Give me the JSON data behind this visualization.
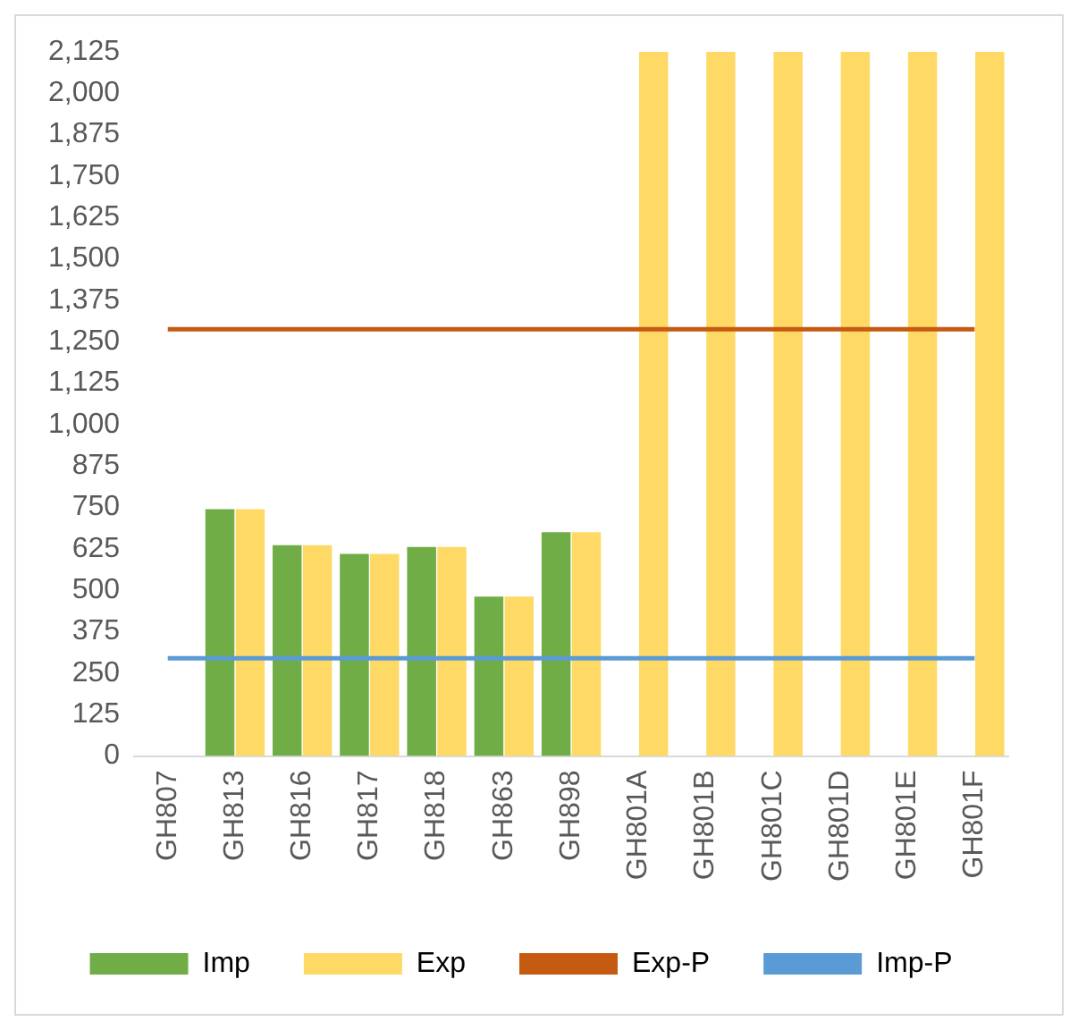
{
  "chart_data": {
    "type": "bar",
    "categories": [
      "GH807",
      "GH813",
      "GH816",
      "GH817",
      "GH818",
      "GH863",
      "GH898",
      "GH801A",
      "GH801B",
      "GH801C",
      "GH801D",
      "GH801E",
      "GH801F"
    ],
    "series": [
      {
        "name": "Imp",
        "color": "#70ad47",
        "values": [
          null,
          745,
          636,
          610,
          631,
          481,
          675,
          null,
          null,
          null,
          null,
          null,
          null
        ]
      },
      {
        "name": "Exp",
        "color": "#ffd966",
        "values": [
          null,
          745,
          636,
          610,
          631,
          481,
          675,
          2125,
          2125,
          2125,
          2125,
          2125,
          2125
        ]
      },
      {
        "name": "Exp-P",
        "type": "line",
        "color": "#c55a11",
        "values": [
          1288,
          1288,
          1288,
          1288,
          1288,
          1288,
          1288,
          1288,
          1288,
          1288,
          1288,
          1288,
          1288
        ]
      },
      {
        "name": "Imp-P",
        "type": "line",
        "color": "#5b9bd5",
        "values": [
          295,
          295,
          295,
          295,
          295,
          295,
          295,
          295,
          295,
          295,
          295,
          295,
          295
        ]
      }
    ],
    "ylim": [
      0,
      2125
    ],
    "yticks": [
      0,
      125,
      250,
      375,
      500,
      625,
      750,
      875,
      {
        "value": 1000,
        "label": "1,000"
      },
      {
        "value": 1125,
        "label": "1,125"
      },
      {
        "value": 1250,
        "label": "1,250"
      },
      {
        "value": 1375,
        "label": "1,375"
      },
      {
        "value": 1500,
        "label": "1,500"
      },
      {
        "value": 1625,
        "label": "1,625"
      },
      {
        "value": 1750,
        "label": "1,750"
      },
      {
        "value": 1875,
        "label": "1,875"
      },
      {
        "value": 2000,
        "label": "2,000"
      },
      {
        "value": 2125,
        "label": "2,125"
      }
    ],
    "grid": false,
    "legend": "bottom",
    "marker": "none",
    "line_style": "solid"
  }
}
